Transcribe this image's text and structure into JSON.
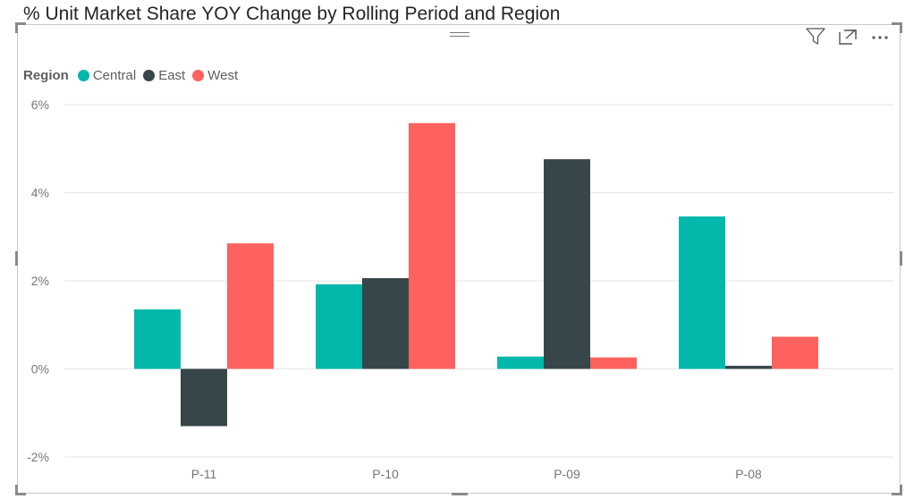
{
  "header": {
    "title": "% Unit Market Share YOY Change by Rolling Period and Region"
  },
  "icons": {
    "filter": "filter-icon",
    "focus": "focus-mode-icon",
    "more": "more-options-icon"
  },
  "legend": {
    "title": "Region",
    "items": [
      {
        "label": "Central",
        "color": "#01B8AA"
      },
      {
        "label": "East",
        "color": "#374649"
      },
      {
        "label": "West",
        "color": "#FD625E"
      }
    ]
  },
  "chart_data": {
    "type": "bar",
    "title": "% Unit Market Share YOY Change by Rolling Period and Region",
    "categories": [
      "P-11",
      "P-10",
      "P-09",
      "P-08"
    ],
    "series": [
      {
        "name": "Central",
        "color": "#01B8AA",
        "values": [
          1.35,
          1.92,
          0.28,
          3.46
        ]
      },
      {
        "name": "East",
        "color": "#374649",
        "values": [
          -1.3,
          2.06,
          4.76,
          0.07
        ]
      },
      {
        "name": "West",
        "color": "#FD625E",
        "values": [
          2.85,
          5.58,
          0.26,
          0.73
        ]
      }
    ],
    "ylim": [
      -2,
      6
    ],
    "yticks": [
      -2,
      0,
      2,
      4,
      6
    ],
    "ytick_labels": [
      "-2%",
      "0%",
      "2%",
      "4%",
      "6%"
    ],
    "grid": true,
    "legend_position": "top-left"
  }
}
